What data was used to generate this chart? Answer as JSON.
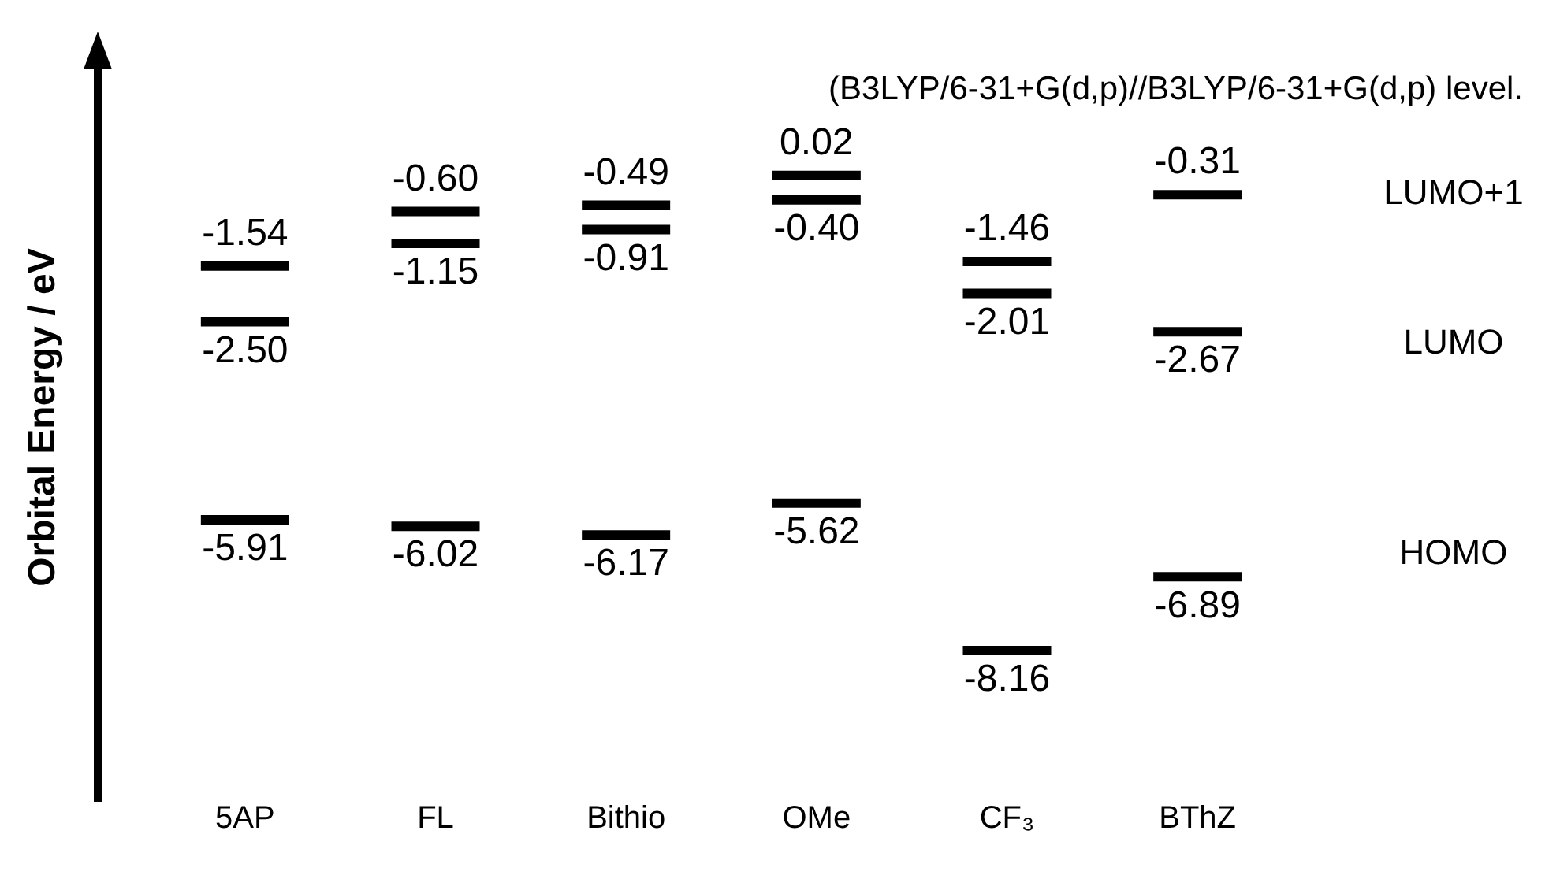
{
  "chart_data": {
    "type": "other",
    "ylabel": "Orbital Energy / eV",
    "annotations": [
      "(B3LYP/6-31+G(d,p)//B3LYP/6-31+G(d,p) level."
    ],
    "categories": [
      "5AP",
      "FL",
      "Bithio",
      "OMe",
      "CF₃",
      "BThZ"
    ],
    "series": [
      {
        "name": "LUMO+1",
        "color": "#000000",
        "values": [
          -1.54,
          -0.6,
          -0.49,
          0.02,
          -1.46,
          -0.31
        ],
        "value_labels": [
          "-1.54",
          "-0.60",
          "-0.49",
          "0.02",
          "-1.46",
          "-0.31"
        ]
      },
      {
        "name": "LUMO",
        "color": "#000000",
        "values": [
          -2.5,
          -1.15,
          -0.91,
          -0.4,
          -2.01,
          -2.67
        ],
        "value_labels": [
          "-2.50",
          "-1.15",
          "-0.91",
          "-0.40",
          "-2.01",
          "-2.67"
        ]
      },
      {
        "name": "HOMO",
        "color": "#000000",
        "values": [
          -5.91,
          -6.02,
          -6.17,
          -5.62,
          -8.16,
          -6.89
        ],
        "value_labels": [
          "-5.91",
          "-6.02",
          "-6.17",
          "-5.62",
          "-8.16",
          "-6.89"
        ]
      }
    ]
  }
}
